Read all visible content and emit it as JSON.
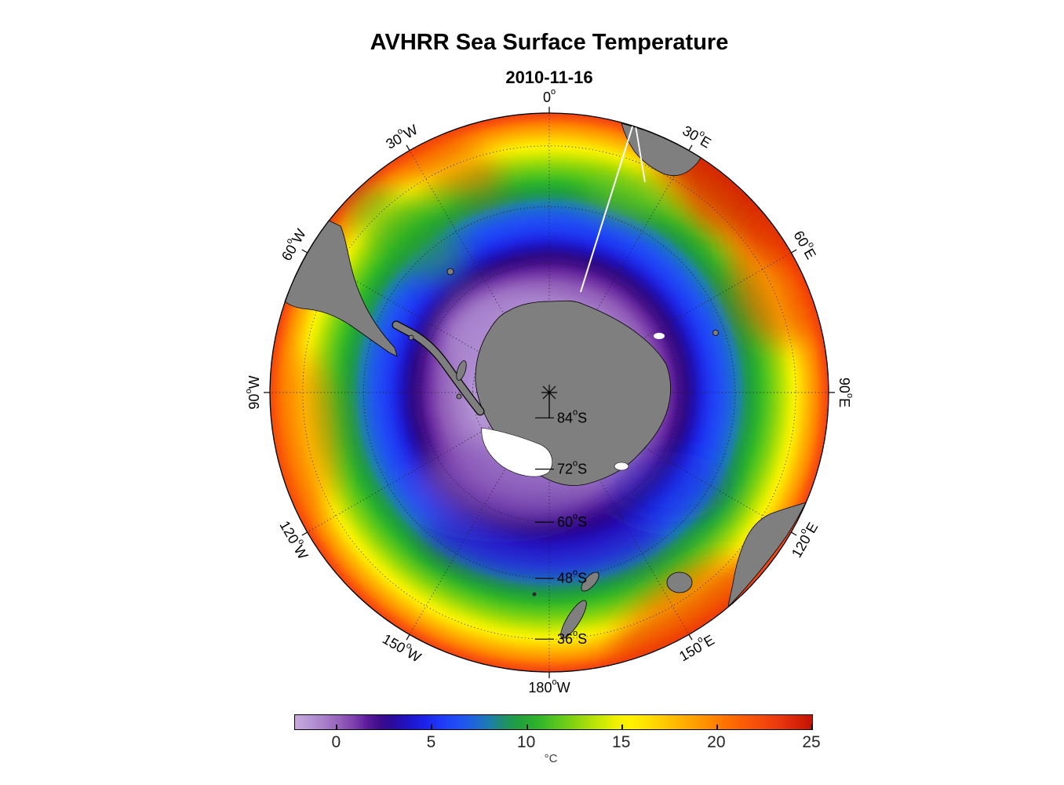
{
  "title": "AVHRR Sea Surface Temperature",
  "subtitle": "2010-11-16",
  "map": {
    "meridian_labels": [
      {
        "label": "0°",
        "lon": 0
      },
      {
        "label": "30°W",
        "lon": -30
      },
      {
        "label": "60°W",
        "lon": -60
      },
      {
        "label": "90°W",
        "lon": -90
      },
      {
        "label": "120°W",
        "lon": -120
      },
      {
        "label": "150°W",
        "lon": -150
      },
      {
        "label": "180°W",
        "lon": 180
      },
      {
        "label": "150°E",
        "lon": 150
      },
      {
        "label": "120°E",
        "lon": 120
      },
      {
        "label": "90°E",
        "lon": 90
      },
      {
        "label": "60°E",
        "lon": 60
      },
      {
        "label": "30°E",
        "lon": 30
      }
    ],
    "parallel_labels": [
      {
        "label": "84°S",
        "lat": -84
      },
      {
        "label": "72°S",
        "lat": -72
      },
      {
        "label": "60°S",
        "lat": -60
      },
      {
        "label": "48°S",
        "lat": -48
      },
      {
        "label": "36°S",
        "lat": -36
      }
    ],
    "land_color": "#7f7f7f",
    "ice_color": "#ffffff"
  },
  "colorbar": {
    "min": -2.2,
    "max": 25,
    "tick_values": [
      0,
      5,
      10,
      15,
      20,
      25
    ],
    "tick_labels": [
      "0",
      "5",
      "10",
      "15",
      "20",
      "25"
    ],
    "unit": "°C",
    "stops": [
      {
        "v": -2.2,
        "c": "#c6abdd"
      },
      {
        "v": -1.4,
        "c": "#b795d5"
      },
      {
        "v": -0.6,
        "c": "#a77cc8"
      },
      {
        "v": 0.2,
        "c": "#955eba"
      },
      {
        "v": 0.9,
        "c": "#7d3fae"
      },
      {
        "v": 1.6,
        "c": "#5c1b9b"
      },
      {
        "v": 2.3,
        "c": "#3b0b8c"
      },
      {
        "v": 3.0,
        "c": "#2a0b9e"
      },
      {
        "v": 3.8,
        "c": "#1f14c8"
      },
      {
        "v": 4.6,
        "c": "#1c22e8"
      },
      {
        "v": 5.4,
        "c": "#1e38f8"
      },
      {
        "v": 6.4,
        "c": "#2050f4"
      },
      {
        "v": 7.2,
        "c": "#1e64dc"
      },
      {
        "v": 8.0,
        "c": "#1e7cb0"
      },
      {
        "v": 8.8,
        "c": "#1f9068"
      },
      {
        "v": 9.6,
        "c": "#21a03c"
      },
      {
        "v": 10.6,
        "c": "#2fb42a"
      },
      {
        "v": 11.6,
        "c": "#58c81c"
      },
      {
        "v": 12.6,
        "c": "#8ad40e"
      },
      {
        "v": 13.6,
        "c": "#bce406"
      },
      {
        "v": 14.6,
        "c": "#ecf000"
      },
      {
        "v": 15.4,
        "c": "#fff200"
      },
      {
        "v": 16.4,
        "c": "#ffdf00"
      },
      {
        "v": 17.4,
        "c": "#ffc400"
      },
      {
        "v": 18.4,
        "c": "#ffaa00"
      },
      {
        "v": 19.4,
        "c": "#ff9000"
      },
      {
        "v": 20.4,
        "c": "#ff7300"
      },
      {
        "v": 21.4,
        "c": "#fb5c06"
      },
      {
        "v": 22.4,
        "c": "#f4480c"
      },
      {
        "v": 23.4,
        "c": "#e93410"
      },
      {
        "v": 24.2,
        "c": "#d62208"
      },
      {
        "v": 25.0,
        "c": "#c01403"
      }
    ]
  },
  "chart_data": {
    "type": "heatmap",
    "title": "AVHRR Sea Surface Temperature",
    "date": "2010-11-16",
    "units": "°C",
    "projection": "south polar stereographic, pole-centered",
    "outer_latitude": -30,
    "lon_gridline_step_deg": 30,
    "lat_gridlines_deg": [
      -84,
      -72,
      -60,
      -48,
      -36
    ],
    "colorbar_range": [
      -2.2,
      25
    ],
    "colorbar_ticks": [
      0,
      5,
      10,
      15,
      20,
      25
    ],
    "radial_profile": {
      "lat_deg": [
        -70,
        -65,
        -60,
        -56,
        -52,
        -48,
        -44,
        -40,
        -36,
        -32,
        -30
      ],
      "sst_c": [
        -1.8,
        -1.2,
        0.3,
        2.0,
        4.5,
        7.0,
        9.5,
        12.5,
        15.5,
        19.0,
        21.0
      ]
    },
    "features": [
      "concentric SST bands from near-freezing lavender/purple water around Antarctica to >20°C red water near 30°S rim",
      "warm Agulhas Current region (>22°C, dark red) south of Africa near 20-40°E",
      "warm red waters east of Australia / Tasman Sea near 150°E",
      "gray land: Antarctica (center), South America tip (upper left), Africa tip (upper right), Australia (lower right), Tasmania, New Zealand",
      "white ice shelf / no-data patches adjacent to Antarctica (Ross Sea sector)",
      "thin white satellite swath gap running from pole toward ~20°E"
    ]
  }
}
